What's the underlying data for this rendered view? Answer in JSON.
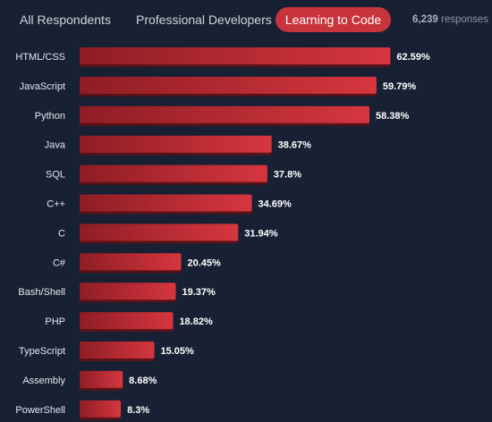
{
  "tabs": [
    {
      "label": "All Respondents",
      "active": false
    },
    {
      "label": "Professional Developers",
      "active": false
    },
    {
      "label": "Learning to Code",
      "active": true
    }
  ],
  "responses": {
    "count": "6,239",
    "label": "responses"
  },
  "colors": {
    "background": "#182033",
    "bar_dark": "#8f1d24",
    "bar_light": "#d6363f",
    "active_tab": "#c8343c"
  },
  "chart_data": {
    "type": "bar",
    "orientation": "horizontal",
    "categories": [
      "HTML/CSS",
      "JavaScript",
      "Python",
      "Java",
      "SQL",
      "C++",
      "C",
      "C#",
      "Bash/Shell",
      "PHP",
      "TypeScript",
      "Assembly",
      "PowerShell"
    ],
    "values": [
      62.59,
      59.79,
      58.38,
      38.67,
      37.8,
      34.69,
      31.94,
      20.45,
      19.37,
      18.82,
      15.05,
      8.68,
      8.3
    ],
    "value_labels": [
      "62.59%",
      "59.79%",
      "58.38%",
      "38.67%",
      "37.8%",
      "34.69%",
      "31.94%",
      "20.45%",
      "19.37%",
      "18.82%",
      "15.05%",
      "8.68%",
      "8.3%"
    ],
    "unit": "%"
  }
}
